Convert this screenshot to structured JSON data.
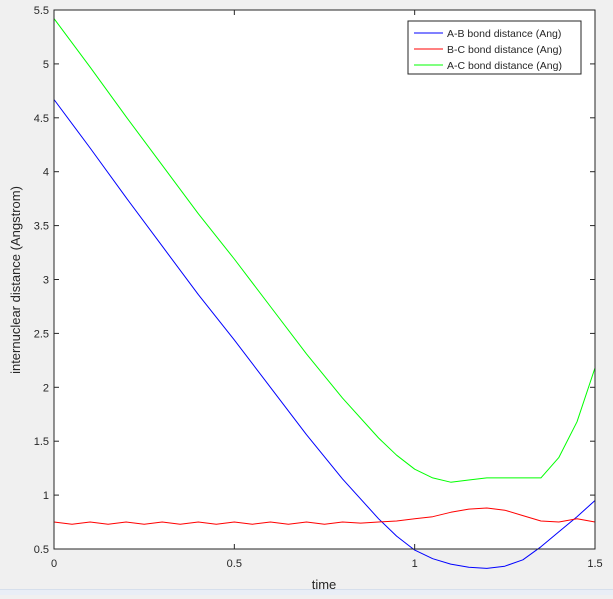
{
  "chart_data": {
    "type": "line",
    "title": "",
    "xlabel": "time",
    "ylabel": "internuclear distance (Angstrom)",
    "xlim": [
      0,
      1.5
    ],
    "ylim": [
      0.5,
      5.5
    ],
    "x_ticks": [
      "0",
      "0.5",
      "1",
      "1.5"
    ],
    "y_ticks": [
      "0.5",
      "1",
      "1.5",
      "2",
      "2.5",
      "3",
      "3.5",
      "4",
      "4.5",
      "5",
      "5.5"
    ],
    "grid": false,
    "legend_position": "top-right",
    "series": [
      {
        "name": "A-B bond distance (Ang)",
        "color": "#0000ff",
        "points": [
          [
            0,
            4.67
          ],
          [
            0.1,
            4.22
          ],
          [
            0.2,
            3.76
          ],
          [
            0.3,
            3.31
          ],
          [
            0.4,
            2.86
          ],
          [
            0.5,
            2.44
          ],
          [
            0.6,
            2.0
          ],
          [
            0.7,
            1.56
          ],
          [
            0.8,
            1.15
          ],
          [
            0.9,
            0.78
          ],
          [
            0.95,
            0.62
          ],
          [
            1.0,
            0.49
          ],
          [
            1.05,
            0.41
          ],
          [
            1.1,
            0.36
          ],
          [
            1.15,
            0.33
          ],
          [
            1.2,
            0.32
          ],
          [
            1.25,
            0.34
          ],
          [
            1.3,
            0.4
          ],
          [
            1.35,
            0.52
          ],
          [
            1.4,
            0.66
          ],
          [
            1.45,
            0.8
          ],
          [
            1.5,
            0.95
          ]
        ]
      },
      {
        "name": "B-C bond distance (Ang)",
        "color": "#ff0000",
        "points": [
          [
            0,
            0.75
          ],
          [
            0.05,
            0.73
          ],
          [
            0.1,
            0.75
          ],
          [
            0.15,
            0.73
          ],
          [
            0.2,
            0.75
          ],
          [
            0.25,
            0.73
          ],
          [
            0.3,
            0.75
          ],
          [
            0.35,
            0.73
          ],
          [
            0.4,
            0.75
          ],
          [
            0.45,
            0.73
          ],
          [
            0.5,
            0.75
          ],
          [
            0.55,
            0.73
          ],
          [
            0.6,
            0.75
          ],
          [
            0.65,
            0.73
          ],
          [
            0.7,
            0.75
          ],
          [
            0.75,
            0.73
          ],
          [
            0.8,
            0.75
          ],
          [
            0.85,
            0.74
          ],
          [
            0.9,
            0.75
          ],
          [
            0.95,
            0.76
          ],
          [
            1.0,
            0.78
          ],
          [
            1.05,
            0.8
          ],
          [
            1.1,
            0.84
          ],
          [
            1.15,
            0.87
          ],
          [
            1.2,
            0.88
          ],
          [
            1.25,
            0.86
          ],
          [
            1.3,
            0.81
          ],
          [
            1.35,
            0.76
          ],
          [
            1.4,
            0.75
          ],
          [
            1.45,
            0.78
          ],
          [
            1.5,
            0.75
          ]
        ]
      },
      {
        "name": "A-C bond distance (Ang)",
        "color": "#00ff00",
        "points": [
          [
            0,
            5.42
          ],
          [
            0.1,
            4.97
          ],
          [
            0.2,
            4.51
          ],
          [
            0.3,
            4.06
          ],
          [
            0.4,
            3.61
          ],
          [
            0.5,
            3.19
          ],
          [
            0.6,
            2.75
          ],
          [
            0.7,
            2.31
          ],
          [
            0.8,
            1.9
          ],
          [
            0.9,
            1.53
          ],
          [
            0.95,
            1.37
          ],
          [
            1.0,
            1.24
          ],
          [
            1.05,
            1.16
          ],
          [
            1.1,
            1.12
          ],
          [
            1.15,
            1.14
          ],
          [
            1.2,
            1.16
          ],
          [
            1.25,
            1.16
          ],
          [
            1.3,
            1.16
          ],
          [
            1.35,
            1.16
          ],
          [
            1.4,
            1.35
          ],
          [
            1.45,
            1.68
          ],
          [
            1.5,
            2.18
          ]
        ]
      }
    ]
  }
}
